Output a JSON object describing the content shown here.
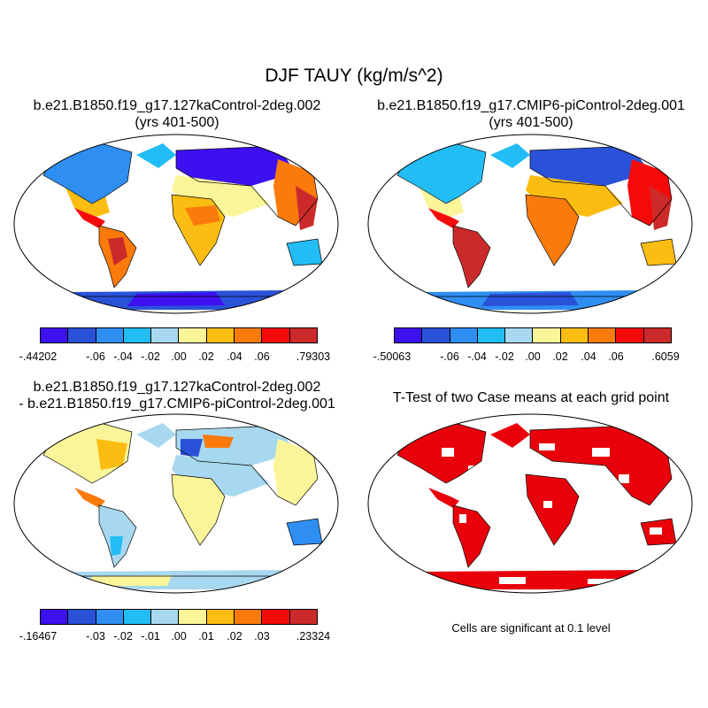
{
  "main_title": "DJF TAUY (kg/m/s^2)",
  "panels": {
    "p1": {
      "title_line1": "b.e21.B1850.f19_g17.127kaControl-2deg.002",
      "title_line2": "(yrs 401-500)"
    },
    "p2": {
      "title_line1": "b.e21.B1850.f19_g17.CMIP6-piControl-2deg.001",
      "title_line2": "(yrs 401-500)"
    },
    "p3": {
      "title_line1": "b.e21.B1850.f19_g17.127kaControl-2deg.002",
      "title_line2": "- b.e21.B1850.f19_g17.CMIP6-piControl-2deg.001"
    },
    "p4": {
      "title_line1": "T-Test of two Case means at each grid point",
      "note": "Cells are significant at 0.1 level"
    }
  },
  "colorbars": {
    "cb1": {
      "labels": [
        "-.44202",
        "-.06",
        "-.04",
        "-.02",
        ".00",
        ".02",
        ".04",
        ".06",
        ".79303"
      ]
    },
    "cb2": {
      "labels": [
        "-.50063",
        "-.06",
        "-.04",
        "-.02",
        ".00",
        ".02",
        ".04",
        ".06",
        ".6059"
      ]
    },
    "cb3": {
      "labels": [
        "-.16467",
        "-.03",
        "-.02",
        "-.01",
        ".00",
        ".01",
        ".02",
        ".03",
        ".23324"
      ]
    }
  },
  "palette": [
    "#3d10f0",
    "#2a52d9",
    "#2f8ef2",
    "#22bdf5",
    "#a8d8ef",
    "#fbf59a",
    "#fcbd12",
    "#fa7a0c",
    "#f50a0a",
    "#cc2a2a"
  ],
  "significance_color": "#e8000b"
}
